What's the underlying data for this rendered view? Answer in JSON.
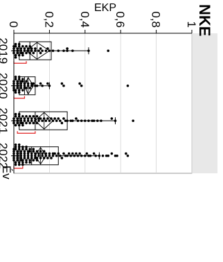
{
  "header": {
    "title": "NKE"
  },
  "chart_data": {
    "type": "box-jitter",
    "orientation": "rotated-90",
    "xlabel": "Év",
    "ylabel": "EKP",
    "categories": [
      "2019",
      "2020",
      "2021",
      "2022"
    ],
    "ylim": [
      0,
      1
    ],
    "y_ticks": [
      0,
      0.2,
      0.4,
      0.6,
      0.8,
      1
    ],
    "y_tick_labels": [
      "0",
      "0,2",
      "0,4",
      "0,6",
      "0,8",
      "1"
    ],
    "grid": true,
    "boxes": [
      {
        "category": "2019",
        "q1": 0.03,
        "median": 0.09,
        "q3": 0.21,
        "whisker_low": 0.0,
        "whisker_high": 0.42,
        "mean": 0.13,
        "ci": [
          0.07,
          0.2
        ],
        "shortest_half": [
          0.0,
          0.07
        ]
      },
      {
        "category": "2020",
        "q1": 0.03,
        "median": 0.06,
        "q3": 0.12,
        "whisker_low": 0.0,
        "whisker_high": 0.2,
        "mean": 0.08,
        "ci": [
          0.06,
          0.11
        ],
        "shortest_half": [
          0.0,
          0.06
        ]
      },
      {
        "category": "2021",
        "q1": 0.03,
        "median": 0.12,
        "q3": 0.3,
        "whisker_low": 0.0,
        "whisker_high": 0.57,
        "mean": 0.17,
        "ci": [
          0.12,
          0.22
        ],
        "shortest_half": [
          0.02,
          0.12
        ]
      },
      {
        "category": "2022",
        "q1": 0.03,
        "median": 0.1,
        "q3": 0.25,
        "whisker_low": 0.0,
        "whisker_high": 0.48,
        "mean": 0.15,
        "ci": [
          0.12,
          0.18
        ],
        "shortest_half": [
          0.0,
          0.05
        ]
      }
    ],
    "points": [
      {
        "category": "2019",
        "values": [
          0.53,
          0.42,
          0.33,
          0.3,
          0.3,
          0.28,
          0.25,
          0.22,
          0.2,
          0.19,
          0.18,
          0.16,
          0.15,
          0.15,
          0.14,
          0.12,
          0.12,
          0.11,
          0.1,
          0.1,
          0.09,
          0.09,
          0.08,
          0.08,
          0.07,
          0.07,
          0.06,
          0.06,
          0.05,
          0.05,
          0.05,
          0.04,
          0.04,
          0.04,
          0.03,
          0.03,
          0.03,
          0.02,
          0.02,
          0.02,
          0.01,
          0.01,
          0.01,
          0.01,
          0.0,
          0.0,
          0.0,
          0.0
        ]
      },
      {
        "category": "2020",
        "values": [
          0.64,
          0.38,
          0.37,
          0.28,
          0.27,
          0.2,
          0.19,
          0.16,
          0.15,
          0.13,
          0.12,
          0.11,
          0.1,
          0.1,
          0.09,
          0.08,
          0.08,
          0.07,
          0.07,
          0.06,
          0.06,
          0.06,
          0.05,
          0.05,
          0.05,
          0.04,
          0.04,
          0.04,
          0.04,
          0.03,
          0.03,
          0.03,
          0.03,
          0.02,
          0.02,
          0.02,
          0.02,
          0.01,
          0.01,
          0.01,
          0.01,
          0.0,
          0.0,
          0.0,
          0.0,
          0.0
        ]
      },
      {
        "category": "2021",
        "values": [
          0.67,
          0.57,
          0.55,
          0.49,
          0.47,
          0.45,
          0.44,
          0.42,
          0.4,
          0.38,
          0.36,
          0.35,
          0.33,
          0.32,
          0.3,
          0.29,
          0.28,
          0.27,
          0.26,
          0.25,
          0.24,
          0.23,
          0.22,
          0.21,
          0.2,
          0.19,
          0.18,
          0.17,
          0.16,
          0.15,
          0.14,
          0.14,
          0.13,
          0.13,
          0.12,
          0.12,
          0.11,
          0.11,
          0.1,
          0.1,
          0.09,
          0.09,
          0.08,
          0.08,
          0.07,
          0.07,
          0.06,
          0.06,
          0.05,
          0.05,
          0.05,
          0.04,
          0.04,
          0.04,
          0.03,
          0.03,
          0.03,
          0.02,
          0.02,
          0.02,
          0.01,
          0.01,
          0.01,
          0.0,
          0.0,
          0.0
        ]
      },
      {
        "category": "2022",
        "values": [
          0.64,
          0.63,
          0.58,
          0.57,
          0.55,
          0.53,
          0.52,
          0.5,
          0.48,
          0.46,
          0.45,
          0.43,
          0.42,
          0.41,
          0.4,
          0.38,
          0.37,
          0.36,
          0.35,
          0.34,
          0.33,
          0.32,
          0.31,
          0.3,
          0.29,
          0.28,
          0.27,
          0.26,
          0.25,
          0.24,
          0.23,
          0.22,
          0.22,
          0.21,
          0.2,
          0.2,
          0.19,
          0.18,
          0.18,
          0.17,
          0.17,
          0.16,
          0.16,
          0.15,
          0.15,
          0.14,
          0.14,
          0.13,
          0.13,
          0.13,
          0.12,
          0.12,
          0.12,
          0.11,
          0.11,
          0.11,
          0.1,
          0.1,
          0.1,
          0.09,
          0.09,
          0.09,
          0.09,
          0.08,
          0.08,
          0.08,
          0.08,
          0.07,
          0.07,
          0.07,
          0.07,
          0.06,
          0.06,
          0.06,
          0.06,
          0.05,
          0.05,
          0.05,
          0.05,
          0.05,
          0.04,
          0.04,
          0.04,
          0.04,
          0.04,
          0.03,
          0.03,
          0.03,
          0.03,
          0.03,
          0.02,
          0.02,
          0.02,
          0.02,
          0.02,
          0.01,
          0.01,
          0.01,
          0.01,
          0.01,
          0.0,
          0.0,
          0.0,
          0.0,
          0.0,
          0.0
        ]
      }
    ],
    "colors": {
      "points": "#000000",
      "box": "#000000",
      "shortest_half": "#e02020",
      "grid": "#d4d4d4",
      "frame": "#9a9a9a",
      "panel_bg": "#e8e8e8"
    }
  }
}
